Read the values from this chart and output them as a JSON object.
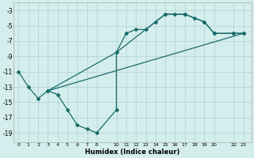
{
  "xlabel": "Humidex (Indice chaleur)",
  "bg_color": "#d4eeed",
  "grid_color": "#b8d8d8",
  "line_color": "#1a6b6b",
  "line1_x": [
    0,
    1,
    2,
    3,
    4,
    5,
    6,
    7,
    8,
    10,
    10,
    11,
    12,
    13,
    14,
    15,
    16,
    17,
    18,
    19,
    20,
    22,
    23
  ],
  "line1_y": [
    -11,
    -13,
    -14.5,
    -13.5,
    -14,
    -16,
    -18,
    -18.5,
    -19,
    -16,
    -8.5,
    -6,
    -5.5,
    -5.5,
    -4.5,
    -3.5,
    -3.5,
    -3.5,
    -4,
    -4.5,
    -6,
    -6,
    -6
  ],
  "line2_x": [
    3,
    10,
    15,
    17,
    19,
    20,
    22,
    23
  ],
  "line2_y": [
    -13.5,
    -8.5,
    -3.5,
    -3.5,
    -4.5,
    -6,
    -6,
    -6
  ],
  "line3_x": [
    3,
    23
  ],
  "line3_y": [
    -13.5,
    -6
  ],
  "xlim": [
    -0.5,
    23.8
  ],
  "ylim": [
    -20.2,
    -2.0
  ],
  "xticks": [
    0,
    1,
    2,
    3,
    4,
    5,
    6,
    7,
    8,
    10,
    11,
    12,
    13,
    14,
    15,
    16,
    17,
    18,
    19,
    20,
    22,
    23
  ],
  "yticks": [
    -3,
    -5,
    -7,
    -9,
    -11,
    -13,
    -15,
    -17,
    -19
  ]
}
